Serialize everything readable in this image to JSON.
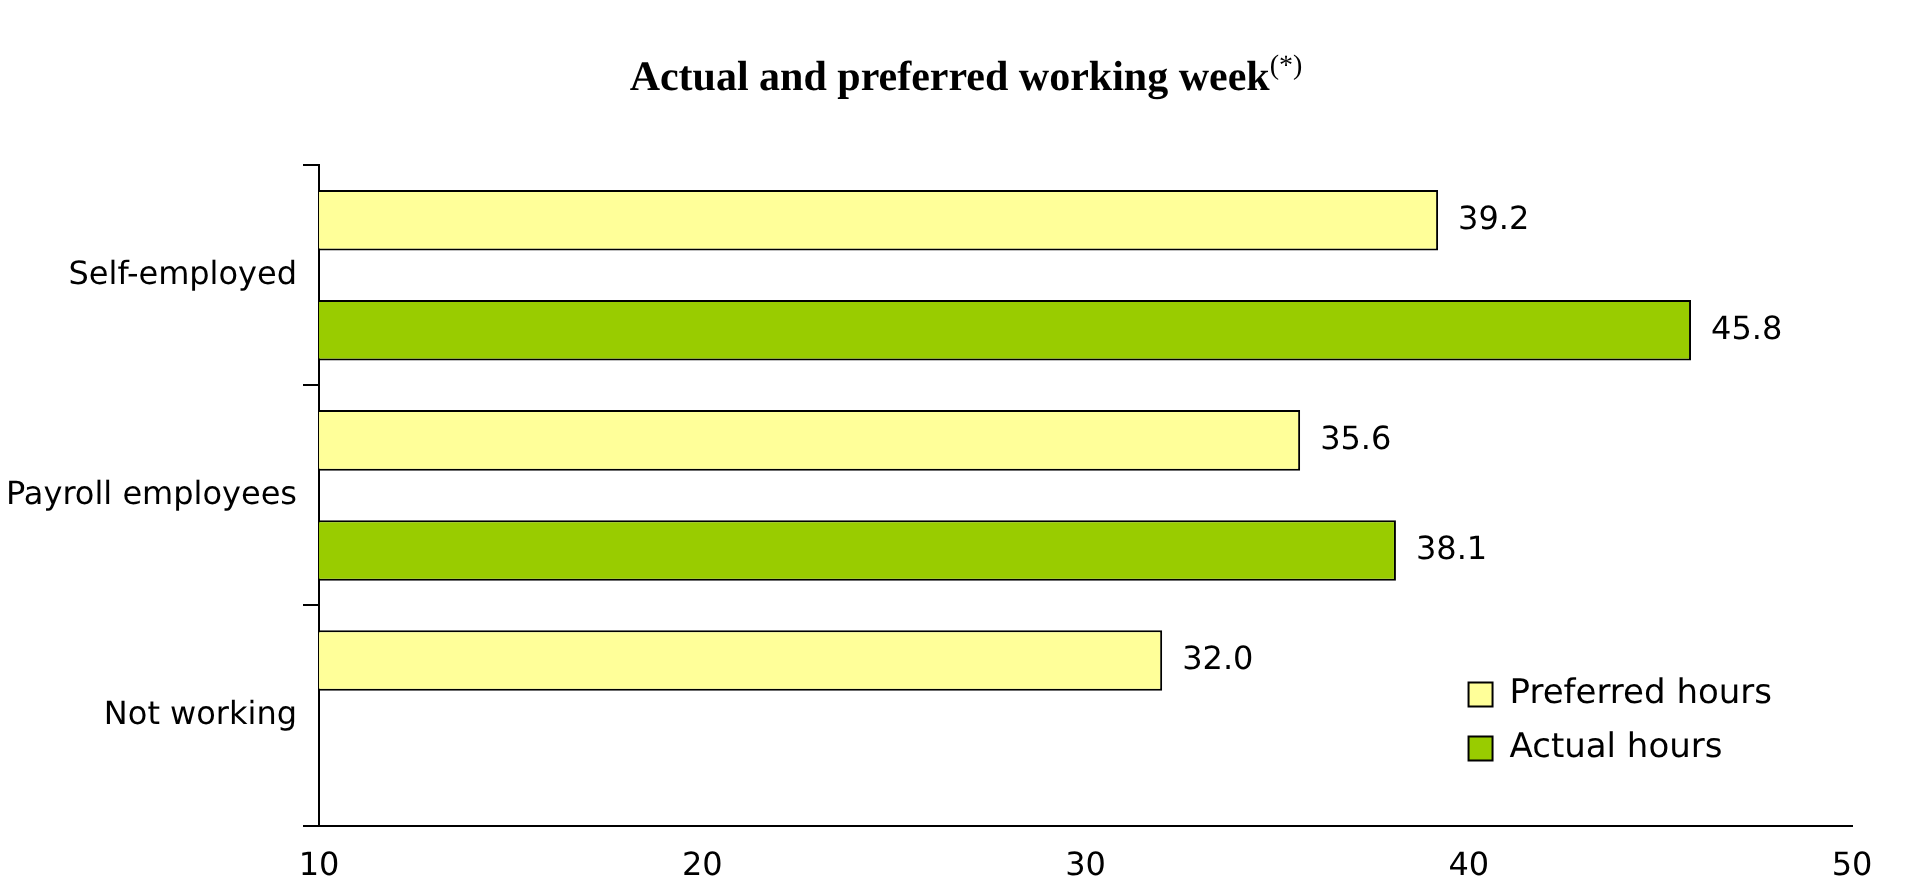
{
  "chart_data": {
    "type": "bar",
    "orientation": "horizontal",
    "title": "Actual and preferred working week$^{(*)}$",
    "categories": [
      "Self-employed",
      "Payroll employees",
      "Not working"
    ],
    "series": [
      {
        "name": "Preferred hours",
        "color": "#ffff99",
        "values": [
          39.2,
          35.6,
          32.0
        ],
        "value_labels": [
          "39.2",
          "35.6",
          "32.0"
        ]
      },
      {
        "name": "Actual hours",
        "color": "#99cc00",
        "values": [
          45.8,
          38.1,
          null
        ],
        "value_labels": [
          "45.8",
          "38.1",
          null
        ]
      }
    ],
    "xlim": [
      10,
      50
    ],
    "xticks": [
      10,
      20,
      30,
      40,
      50
    ],
    "grid": false,
    "legend": "bottom right"
  }
}
